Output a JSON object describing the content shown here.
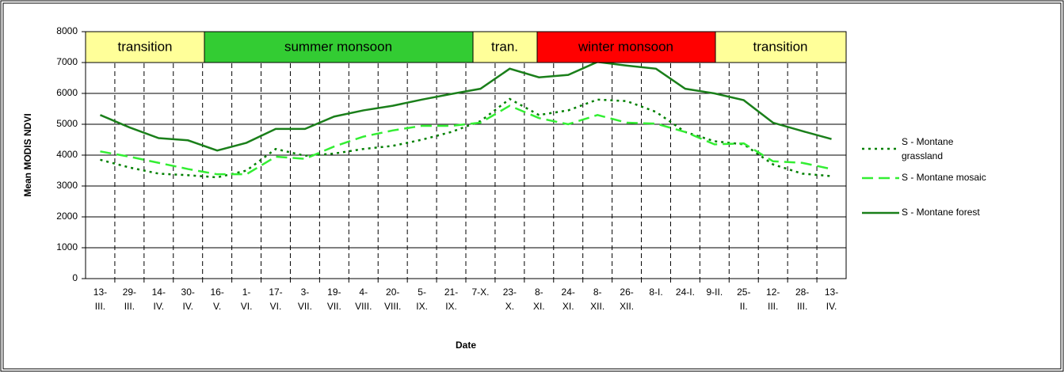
{
  "chart_data": {
    "type": "line",
    "x_label": "Date",
    "y_label": "Mean MODIS NDVI",
    "seasons": [
      "transition",
      "summer monsoon",
      "tran.",
      "winter monsoon",
      "transition"
    ],
    "categories": [
      "13-III.",
      "29-III.",
      "14-IV.",
      "30-IV.",
      "16-V.",
      "1-VI.",
      "17-VI.",
      "3-VII.",
      "19-VII.",
      "4-VIII.",
      "20-VIII.",
      "5-IX.",
      "21-IX.",
      "7-X.",
      "23-X.",
      "8-XI.",
      "24-XI.",
      "8-XII.",
      "26-XII.",
      "8-I.",
      "24-I.",
      "9-II.",
      "25-II.",
      "12-III.",
      "28-III.",
      "13-IV."
    ],
    "series": [
      {
        "name": "S - Montane grassland",
        "color": "#008000",
        "style": "dotted",
        "values": [
          3850,
          3600,
          3400,
          3350,
          3280,
          3500,
          4200,
          3980,
          4050,
          4200,
          4300,
          4500,
          4750,
          5100,
          5820,
          5300,
          5450,
          5800,
          5750,
          5400,
          4750,
          4450,
          4350,
          3700,
          3400,
          3320
        ]
      },
      {
        "name": "S - Montane mosaic",
        "color": "#33ee33",
        "style": "dashed",
        "values": [
          4120,
          3950,
          3750,
          3550,
          3380,
          3380,
          3950,
          3880,
          4280,
          4600,
          4800,
          4950,
          4950,
          5050,
          5600,
          5200,
          5000,
          5300,
          5050,
          5020,
          4750,
          4350,
          4380,
          3800,
          3750,
          3550
        ]
      },
      {
        "name": "S - Montane forest",
        "color": "#1a7f1a",
        "style": "solid",
        "values": [
          5300,
          4900,
          4550,
          4480,
          4150,
          4400,
          4850,
          4850,
          5250,
          5450,
          5600,
          5800,
          5980,
          6150,
          6800,
          6520,
          6600,
          7020,
          6900,
          6800,
          6150,
          6000,
          5780,
          5050,
          4780,
          4520
        ]
      }
    ],
    "ylim": [
      0,
      8000
    ],
    "yticks": [
      0,
      1000,
      2000,
      3000,
      4000,
      5000,
      6000,
      7000,
      8000
    ],
    "grid": true
  }
}
